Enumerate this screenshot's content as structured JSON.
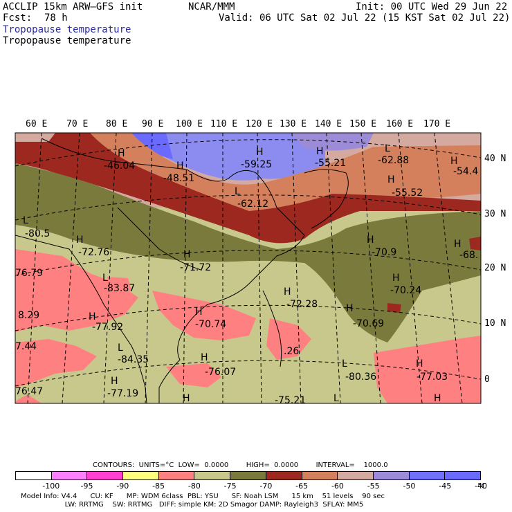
{
  "header": {
    "model": "ACCLIP 15km ARW–GFS init",
    "org": "NCAR/MMM",
    "init": "Init: 00 UTC Wed 29 Jun 22",
    "fcst_label": "Fcst:",
    "fcst_value": "78 h",
    "valid": "Valid: 06 UTC Sat 02 Jul 22 (15 KST Sat 02 Jul 22)",
    "field1": "Tropopause temperature",
    "field2": "Tropopause temperature"
  },
  "map": {
    "lon_labels": [
      "60 E",
      "70 E",
      "80 E",
      "90 E",
      "100 E",
      "110 E",
      "120 E",
      "130 E",
      "140 E",
      "150 E",
      "160 E",
      "170 E"
    ],
    "lat_labels": [
      "40 N",
      "30 N",
      "20 N",
      "10 N",
      "0"
    ],
    "highs": [
      {
        "label": "H",
        "value": "-46.04"
      },
      {
        "label": "H",
        "value": "-48.51"
      },
      {
        "label": "H",
        "value": "-59.25"
      },
      {
        "label": "H",
        "value": "-55.21"
      },
      {
        "label": "L",
        "value": "-62.88"
      },
      {
        "label": "H",
        "value": "-54.4"
      },
      {
        "label": "L",
        "value": "-62.12"
      },
      {
        "label": "H",
        "value": "-55.52"
      },
      {
        "label": "L",
        "value": "-80.5"
      },
      {
        "label": "H",
        "value": "-72.76"
      },
      {
        "label": "H",
        "value": "-71.72"
      },
      {
        "label": "H",
        "value": "-70.9"
      },
      {
        "label": "H",
        "value": "-68."
      },
      {
        "label": "",
        "value": "76.79"
      },
      {
        "label": "L",
        "value": "-83.87"
      },
      {
        "label": "H",
        "value": "-70.24"
      },
      {
        "label": "H",
        "value": "-72.28"
      },
      {
        "label": "",
        "value": "8.29"
      },
      {
        "label": "H",
        "value": "-77.92"
      },
      {
        "label": "H",
        "value": "-70.74"
      },
      {
        "label": "H",
        "value": "-70.69"
      },
      {
        "label": "",
        "value": "7.44"
      },
      {
        "label": "L",
        "value": "-84.35"
      },
      {
        "label": "",
        "value": ".26"
      },
      {
        "label": "H",
        "value": "-76.07"
      },
      {
        "label": "L",
        "value": "-80.36"
      },
      {
        "label": "H",
        "value": "-77.03"
      },
      {
        "label": "",
        "value": "76.47"
      },
      {
        "label": "H",
        "value": "-77.19"
      },
      {
        "label": "H",
        "value": ""
      },
      {
        "label": "",
        "value": "-75.21"
      },
      {
        "label": "L",
        "value": ""
      },
      {
        "label": "H",
        "value": ""
      }
    ]
  },
  "contours": {
    "text": "CONTOURS:  UNITS=°C  LOW=  0.0000        HIGH=  0.0000        INTERVAL=    1000.0"
  },
  "colorbar": {
    "colors": [
      "#ffffff",
      "#ff80ff",
      "#ff40d0",
      "#ffff80",
      "#ff8080",
      "#c8c88c",
      "#7a7a3c",
      "#9c2820",
      "#d4805c",
      "#d4aaa0",
      "#9c8cd8",
      "#7070ff",
      "#6a6aff"
    ],
    "ticks": [
      "-100",
      "-95",
      "-90",
      "-85",
      "-80",
      "-75",
      "-70",
      "-65",
      "-60",
      "-55",
      "-50",
      "-45",
      "-40"
    ],
    "unit": "°C"
  },
  "footer": {
    "line1": "Model Info: V4.4      CU: KF      MP: WDM 6class  PBL: YSU      SF: Noah LSM      15 km    51 levels    90 sec",
    "line2": "                    LW: RRTMG    SW: RRTMG   DIFF: simple KM: 2D Smagor DAMP: Rayleigh3  SFLAY: MM5"
  }
}
